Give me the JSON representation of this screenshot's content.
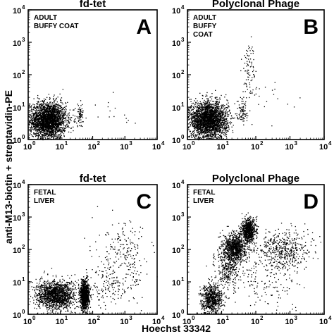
{
  "figure": {
    "ylabel": "anti-M13-biotin + streptavidin-PE",
    "xlabel": "Hoechst 33342"
  },
  "chart_data": [
    {
      "type": "scatter",
      "title": "fd-tet",
      "panel_letter": "A",
      "sample_label": [
        "ADULT",
        "BUFFY COAT"
      ],
      "x_scale": "log",
      "y_scale": "log",
      "xlim": [
        1,
        10000
      ],
      "ylim": [
        1,
        10000
      ],
      "x_ticks": [
        1,
        10,
        100,
        1000,
        10000
      ],
      "y_ticks": [
        1,
        10,
        100,
        1000,
        10000
      ],
      "populations": [
        {
          "center_x": 4,
          "center_y": 4,
          "spread_x": 0.28,
          "spread_y": 0.28,
          "count": 2600
        },
        {
          "center_x": 40,
          "center_y": 6,
          "spread_x": 0.08,
          "spread_y": 0.18,
          "count": 70
        },
        {
          "center_x": 300,
          "center_y": 5,
          "spread_x": 0.5,
          "spread_y": 0.3,
          "count": 14
        }
      ]
    },
    {
      "type": "scatter",
      "title": "Polyclonal Phage",
      "panel_letter": "B",
      "sample_label": [
        "ADULT",
        "BUFFY",
        "COAT"
      ],
      "x_scale": "log",
      "y_scale": "log",
      "xlim": [
        1,
        10000
      ],
      "ylim": [
        1,
        10000
      ],
      "x_ticks": [
        1,
        10,
        100,
        1000,
        10000
      ],
      "y_ticks": [
        1,
        10,
        100,
        1000,
        10000
      ],
      "populations": [
        {
          "center_x": 4,
          "center_y": 4,
          "spread_x": 0.28,
          "spread_y": 0.28,
          "count": 2600
        },
        {
          "center_x": 40,
          "center_y": 8,
          "spread_x": 0.08,
          "spread_y": 0.2,
          "count": 80
        },
        {
          "center_x": 60,
          "center_y": 150,
          "spread_x": 0.1,
          "spread_y": 0.45,
          "count": 90
        },
        {
          "center_x": 300,
          "center_y": 20,
          "spread_x": 0.5,
          "spread_y": 0.6,
          "count": 18
        }
      ]
    },
    {
      "type": "scatter",
      "title": "fd-tet",
      "panel_letter": "C",
      "sample_label": [
        "FETAL",
        "LIVER"
      ],
      "x_scale": "log",
      "y_scale": "log",
      "xlim": [
        1,
        10000
      ],
      "ylim": [
        1,
        10000
      ],
      "x_ticks": [
        1,
        10,
        100,
        1000,
        10000
      ],
      "y_ticks": [
        1,
        10,
        100,
        1000,
        10000
      ],
      "populations": [
        {
          "center_x": 7,
          "center_y": 4,
          "spread_x": 0.3,
          "spread_y": 0.22,
          "count": 1500
        },
        {
          "center_x": 55,
          "center_y": 4,
          "spread_x": 0.07,
          "spread_y": 0.22,
          "count": 1100
        },
        {
          "center_x": 400,
          "center_y": 8,
          "spread_x": 0.45,
          "spread_y": 0.35,
          "count": 180
        },
        {
          "center_x": 1000,
          "center_y": 80,
          "spread_x": 0.4,
          "spread_y": 0.45,
          "count": 180
        }
      ]
    },
    {
      "type": "scatter",
      "title": "Polyclonal Phage",
      "panel_letter": "D",
      "sample_label": [
        "FETAL",
        "LIVER"
      ],
      "x_scale": "log",
      "y_scale": "log",
      "xlim": [
        1,
        10000
      ],
      "ylim": [
        1,
        10000
      ],
      "x_ticks": [
        1,
        10,
        100,
        1000,
        10000
      ],
      "y_ticks": [
        1,
        10,
        100,
        1000,
        10000
      ],
      "populations": [
        {
          "center_x": 5,
          "center_y": 3,
          "spread_x": 0.15,
          "spread_y": 0.22,
          "count": 700
        },
        {
          "center_x": 25,
          "center_y": 120,
          "spread_x": 0.16,
          "spread_y": 0.22,
          "count": 900
        },
        {
          "center_x": 60,
          "center_y": 400,
          "spread_x": 0.1,
          "spread_y": 0.18,
          "count": 700
        },
        {
          "center_x": 15,
          "center_y": 30,
          "spread_x": 0.18,
          "spread_y": 0.35,
          "count": 350
        },
        {
          "center_x": 600,
          "center_y": 100,
          "spread_x": 0.4,
          "spread_y": 0.3,
          "count": 500
        },
        {
          "center_x": 200,
          "center_y": 10,
          "spread_x": 0.5,
          "spread_y": 0.4,
          "count": 140
        }
      ]
    }
  ]
}
